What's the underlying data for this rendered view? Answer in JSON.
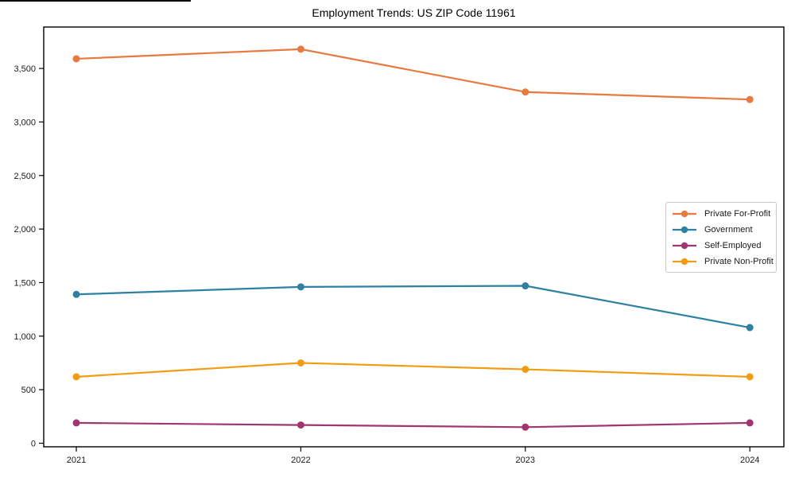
{
  "chart_data": {
    "type": "line",
    "title": "Employment Trends: US ZIP Code 11961",
    "xlabel": "",
    "ylabel": "",
    "categories": [
      "2021",
      "2022",
      "2023",
      "2024"
    ],
    "series": [
      {
        "name": "Private For-Profit",
        "color": "#e8793f",
        "values": [
          3590,
          3680,
          3280,
          3210
        ]
      },
      {
        "name": "Government",
        "color": "#2e81a0",
        "values": [
          1390,
          1460,
          1470,
          1080
        ]
      },
      {
        "name": "Self-Employed",
        "color": "#a03571",
        "values": [
          190,
          170,
          150,
          190
        ]
      },
      {
        "name": "Private Non-Profit",
        "color": "#f39c12",
        "values": [
          620,
          750,
          690,
          620
        ]
      }
    ],
    "ylim": [
      0,
      3500
    ],
    "ytick_step": 500,
    "ytick_labels": [
      "0",
      "500",
      "1,000",
      "1,500",
      "2,000",
      "2,500",
      "3,000",
      "3,500"
    ],
    "marker": "circle",
    "grid": false,
    "legend_position": "center-right"
  }
}
